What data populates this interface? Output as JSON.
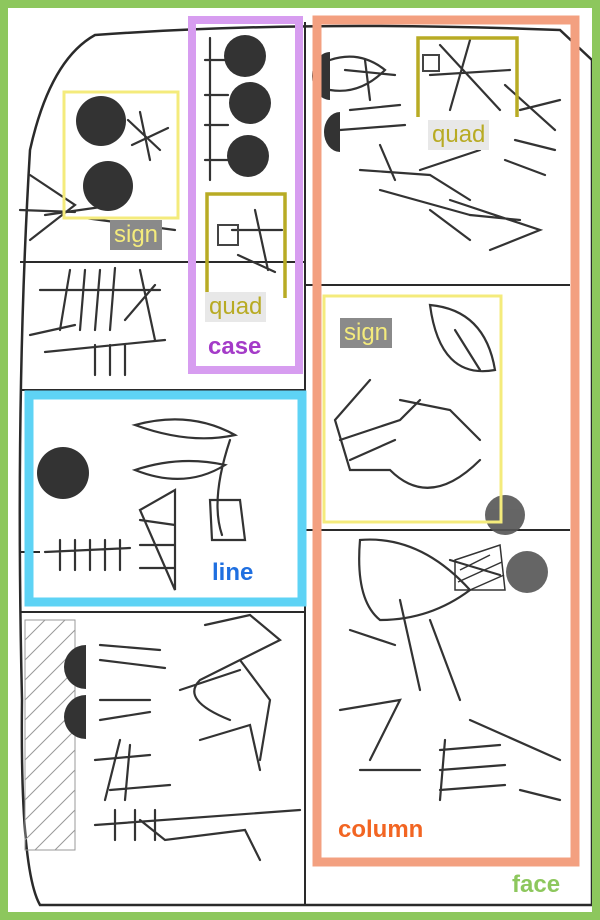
{
  "colors": {
    "face": "#8dc75d",
    "column": "#f3a080",
    "case": "#d79df0",
    "line": "#5ed3f5",
    "sign": "#f4eb7c",
    "quad": "#b8ab24",
    "ink": "#2a2a2a"
  },
  "labels": {
    "face": "face",
    "column": "column",
    "case": "case",
    "line": "line",
    "sign_left": "sign",
    "sign_right": "sign",
    "quad_case": "quad",
    "quad_column": "quad"
  },
  "label_colors": {
    "face": "#8dc75d",
    "column": "#f26522",
    "case": "#a43bc8",
    "line": "#1f6fe0",
    "sign": "#f4eb7c",
    "quad": "#b8ab24"
  }
}
